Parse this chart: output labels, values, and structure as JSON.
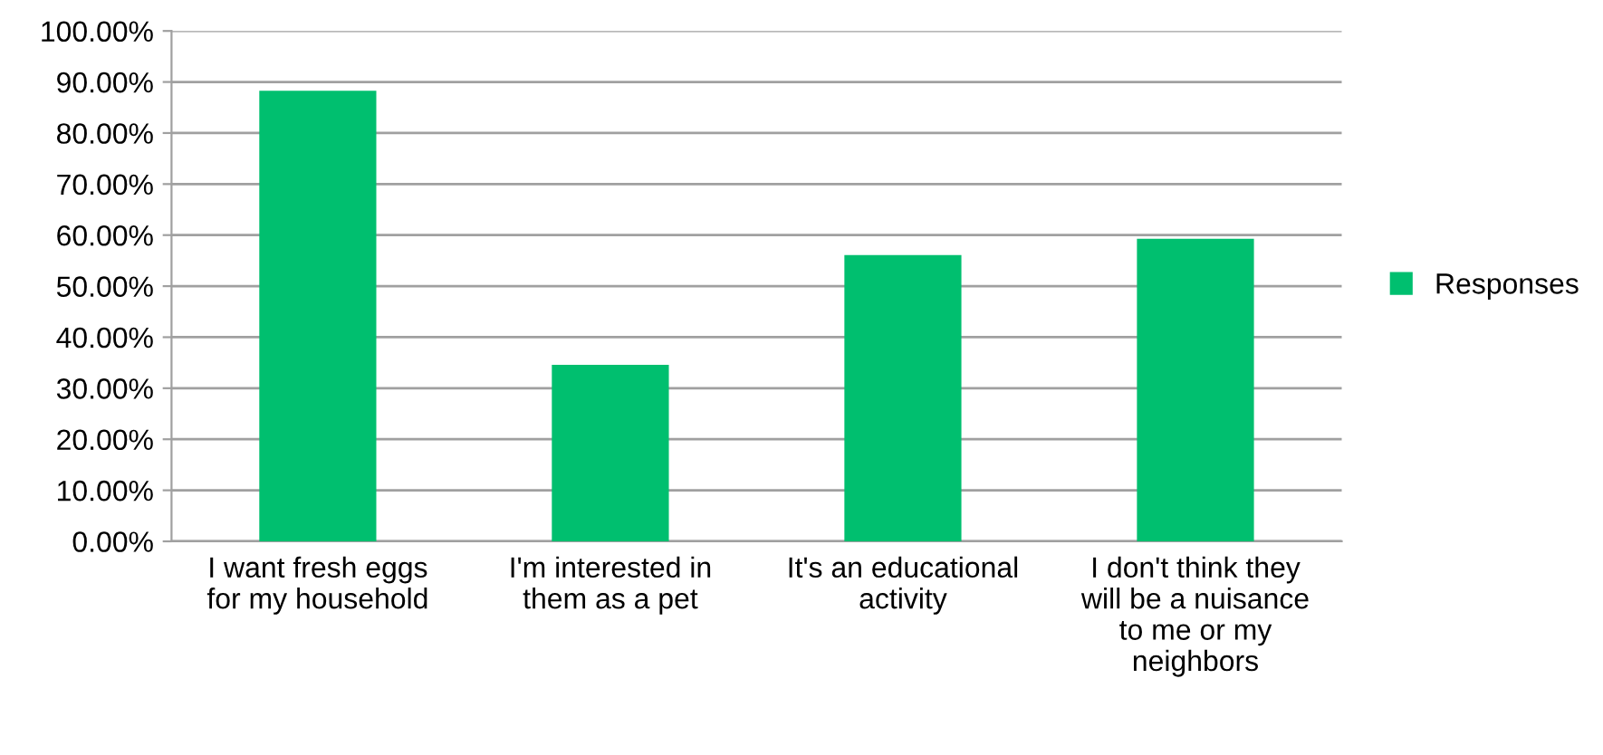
{
  "chart_data": {
    "type": "bar",
    "categories": [
      "I want fresh eggs\nfor my household",
      "I'm interested in\nthem as a pet",
      "It's an educational\nactivity",
      "I don't think they\nwill be a nuisance\nto me or my\nneighbors"
    ],
    "series": [
      {
        "name": "Responses",
        "color": "#00bf6f",
        "values": [
          88.3,
          34.6,
          56.1,
          59.3
        ]
      }
    ],
    "ylim": [
      0,
      100
    ],
    "yticks": [
      {
        "value": 0,
        "label": "0.00%"
      },
      {
        "value": 10,
        "label": "10.00%"
      },
      {
        "value": 20,
        "label": "20.00%"
      },
      {
        "value": 30,
        "label": "30.00%"
      },
      {
        "value": 40,
        "label": "40.00%"
      },
      {
        "value": 50,
        "label": "50.00%"
      },
      {
        "value": 60,
        "label": "60.00%"
      },
      {
        "value": 70,
        "label": "70.00%"
      },
      {
        "value": 80,
        "label": "80.00%"
      },
      {
        "value": 90,
        "label": "90.00%"
      },
      {
        "value": 100,
        "label": "100.00%"
      }
    ],
    "grid": "y",
    "legend": "right"
  }
}
